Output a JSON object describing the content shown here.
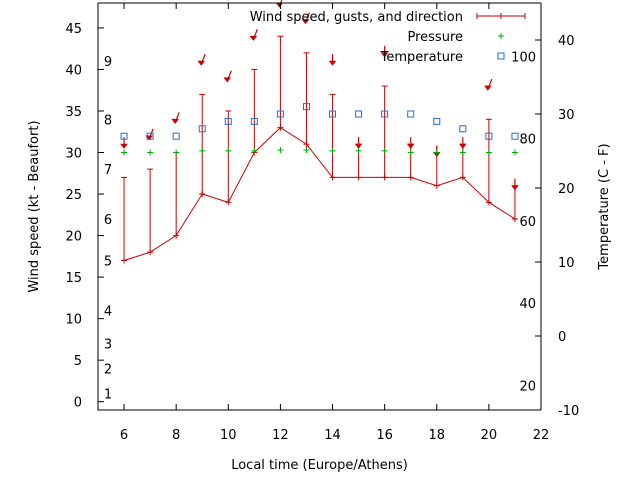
{
  "chart_data": {
    "type": "line",
    "xlabel": "Local time (Europe/Athens)",
    "ylabel": "Wind speed (kt - Beaufort)",
    "y2label": "Temperature (C - F)",
    "xlim": [
      5,
      22
    ],
    "xticks": [
      6,
      8,
      10,
      12,
      14,
      16,
      18,
      20,
      22
    ],
    "ylim": [
      -1,
      48
    ],
    "yticks": [
      0,
      5,
      10,
      15,
      20,
      25,
      30,
      35,
      40,
      45
    ],
    "beaufort_labels": [
      {
        "label": "1",
        "kt": 1
      },
      {
        "label": "2",
        "kt": 4
      },
      {
        "label": "3",
        "kt": 7
      },
      {
        "label": "4",
        "kt": 11
      },
      {
        "label": "5",
        "kt": 17
      },
      {
        "label": "6",
        "kt": 22
      },
      {
        "label": "7",
        "kt": 28
      },
      {
        "label": "8",
        "kt": 34
      },
      {
        "label": "9",
        "kt": 41
      }
    ],
    "y2lim": [
      -10,
      45
    ],
    "y2ticks": [
      -10,
      0,
      10,
      20,
      30,
      40
    ],
    "fahrenheit_labels": [
      {
        "label": "20",
        "c": -6.67
      },
      {
        "label": "40",
        "c": 4.44
      },
      {
        "label": "60",
        "c": 15.56
      },
      {
        "label": "80",
        "c": 26.67
      },
      {
        "label": "100",
        "c": 37.78
      }
    ],
    "legend": "top-right",
    "series": [
      {
        "name": "Wind speed, gusts, and direction",
        "color": "#cc0000",
        "x": [
          6,
          7,
          8,
          9,
          10,
          11,
          12,
          13,
          14,
          15,
          16,
          17,
          18,
          19,
          20,
          21
        ],
        "y": [
          17,
          18,
          20,
          25,
          24,
          30,
          33,
          31,
          27,
          27,
          27,
          27,
          26,
          27,
          24,
          22
        ],
        "gusts": [
          27,
          28,
          30,
          37,
          35,
          40,
          44,
          42,
          37,
          31,
          38,
          31,
          30,
          31,
          34,
          26
        ],
        "direction_arrows": [
          {
            "x": 6,
            "y": 31,
            "dir": "s"
          },
          {
            "x": 7,
            "y": 32,
            "dir": "sw"
          },
          {
            "x": 8,
            "y": 34,
            "dir": "sw"
          },
          {
            "x": 9,
            "y": 41,
            "dir": "sw"
          },
          {
            "x": 10,
            "y": 39,
            "dir": "sw"
          },
          {
            "x": 11,
            "y": 44,
            "dir": "sw"
          },
          {
            "x": 12,
            "y": 48,
            "dir": "sw"
          },
          {
            "x": 13,
            "y": 46,
            "dir": "sw"
          },
          {
            "x": 14,
            "y": 41,
            "dir": "s"
          },
          {
            "x": 15,
            "y": 31,
            "dir": "s"
          },
          {
            "x": 16,
            "y": 42,
            "dir": "s"
          },
          {
            "x": 17,
            "y": 31,
            "dir": "s"
          },
          {
            "x": 18,
            "y": 30,
            "dir": "s"
          },
          {
            "x": 19,
            "y": 31,
            "dir": "s"
          },
          {
            "x": 20,
            "y": 38,
            "dir": "sw"
          },
          {
            "x": 21,
            "y": 26,
            "dir": "s"
          }
        ]
      },
      {
        "name": "Pressure",
        "color": "#00aa00",
        "marker": "plus",
        "x": [
          6,
          7,
          8,
          9,
          10,
          11,
          12,
          13,
          14,
          15,
          16,
          17,
          18,
          19,
          20,
          21
        ],
        "y": [
          30,
          30,
          30,
          30.2,
          30.2,
          30.2,
          30.3,
          30.3,
          30.2,
          30.2,
          30.2,
          30,
          30,
          30,
          30,
          30
        ]
      },
      {
        "name": "Temperature",
        "color": "#1f6fd6",
        "marker": "square",
        "axis": "right",
        "x": [
          6,
          7,
          8,
          9,
          10,
          11,
          12,
          13,
          14,
          15,
          16,
          17,
          18,
          19,
          20,
          21
        ],
        "y": [
          27,
          27,
          27,
          28,
          29,
          29,
          30,
          31,
          30,
          30,
          30,
          30,
          29,
          28,
          27,
          27
        ]
      }
    ]
  }
}
